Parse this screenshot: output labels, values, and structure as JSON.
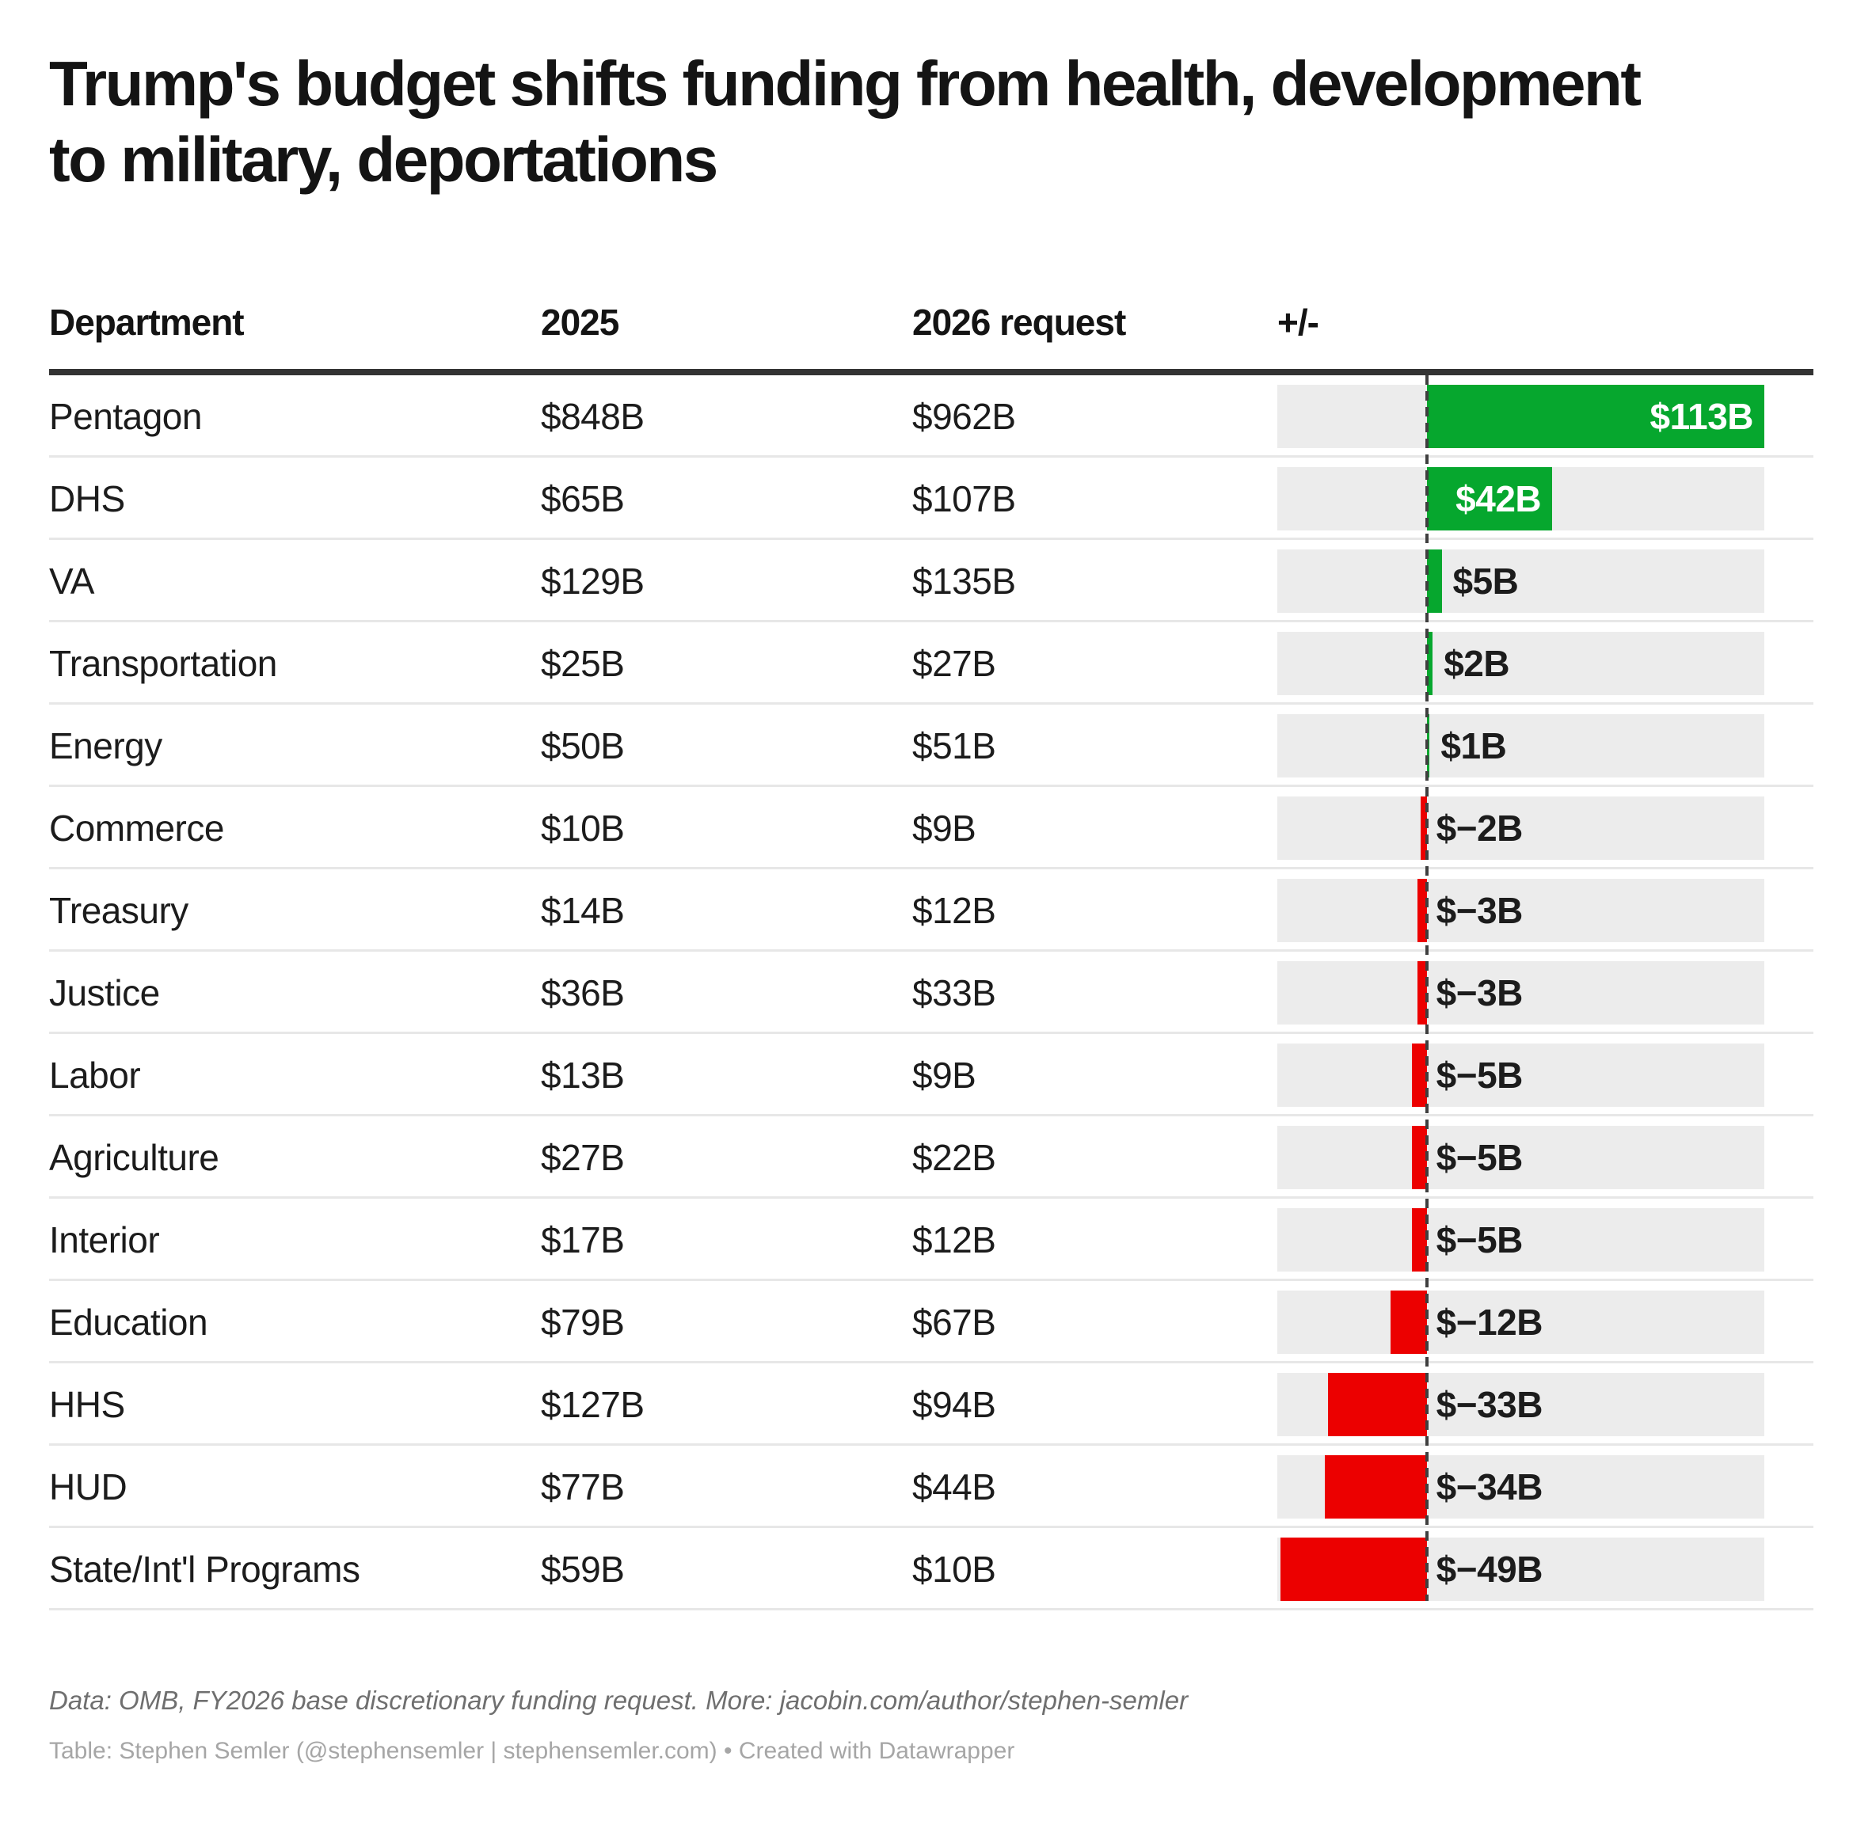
{
  "title": "Trump's budget shifts funding from health, development\nto military, deportations",
  "chart_data": {
    "type": "table",
    "columns": {
      "department": "Department",
      "y2025": "2025",
      "y2026": "2026 request",
      "delta": "+/-"
    },
    "rows": [
      {
        "department": "Pentagon",
        "y2025": "$848B",
        "y2026": "$962B",
        "delta": 113,
        "delta_label": "$113B"
      },
      {
        "department": "DHS",
        "y2025": "$65B",
        "y2026": "$107B",
        "delta": 42,
        "delta_label": "$42B"
      },
      {
        "department": "VA",
        "y2025": "$129B",
        "y2026": "$135B",
        "delta": 5,
        "delta_label": "$5B"
      },
      {
        "department": "Transportation",
        "y2025": "$25B",
        "y2026": "$27B",
        "delta": 2,
        "delta_label": "$2B"
      },
      {
        "department": "Energy",
        "y2025": "$50B",
        "y2026": "$51B",
        "delta": 1,
        "delta_label": "$1B"
      },
      {
        "department": "Commerce",
        "y2025": "$10B",
        "y2026": "$9B",
        "delta": -2,
        "delta_label": "$−2B"
      },
      {
        "department": "Treasury",
        "y2025": "$14B",
        "y2026": "$12B",
        "delta": -3,
        "delta_label": "$−3B"
      },
      {
        "department": "Justice",
        "y2025": "$36B",
        "y2026": "$33B",
        "delta": -3,
        "delta_label": "$−3B"
      },
      {
        "department": "Labor",
        "y2025": "$13B",
        "y2026": "$9B",
        "delta": -5,
        "delta_label": "$−5B"
      },
      {
        "department": "Agriculture",
        "y2025": "$27B",
        "y2026": "$22B",
        "delta": -5,
        "delta_label": "$−5B"
      },
      {
        "department": "Interior",
        "y2025": "$17B",
        "y2026": "$12B",
        "delta": -5,
        "delta_label": "$−5B"
      },
      {
        "department": "Education",
        "y2025": "$79B",
        "y2026": "$67B",
        "delta": -12,
        "delta_label": "$−12B"
      },
      {
        "department": "HHS",
        "y2025": "$127B",
        "y2026": "$94B",
        "delta": -33,
        "delta_label": "$−33B"
      },
      {
        "department": "HUD",
        "y2025": "$77B",
        "y2026": "$44B",
        "delta": -34,
        "delta_label": "$−34B"
      },
      {
        "department": "State/Int'l Programs",
        "y2025": "$59B",
        "y2026": "$10B",
        "delta": -49,
        "delta_label": "$−49B"
      }
    ],
    "axis": {
      "min": -50,
      "max": 113
    },
    "colors": {
      "positive": "#06a72e",
      "negative": "#ec0000",
      "track": "#ececec",
      "baseline": "#3f3f3f",
      "label_inside": "#ffffff",
      "label_outside": "#1c1c1c"
    }
  },
  "footer": {
    "source_line": "Data: OMB, FY2026 base discretionary funding request. More: jacobin.com/author/stephen-semler",
    "credit_line": "Table: Stephen Semler (@stephensemler | stephensemler.com) • Created with Datawrapper"
  }
}
